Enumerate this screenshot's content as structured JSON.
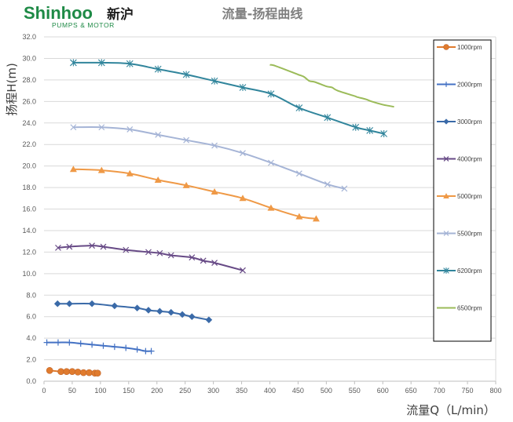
{
  "logo": {
    "main": "Shinhoo",
    "cn": "新沪",
    "sub": "PUMPS & MOTOR"
  },
  "chart_data": {
    "type": "line",
    "title": "流量-扬程曲线",
    "xlabel": "流量Q（L/min）",
    "ylabel": "扬程H(m)",
    "xlim": [
      0,
      800
    ],
    "ylim": [
      0,
      32
    ],
    "xticks": [
      "0",
      "50",
      "100",
      "150",
      "200",
      "250",
      "300",
      "350",
      "400",
      "450",
      "500",
      "550",
      "600",
      "650",
      "700",
      "750",
      "800"
    ],
    "yticks": [
      "0.0",
      "2.0",
      "4.0",
      "6.0",
      "8.0",
      "10.0",
      "12.0",
      "14.0",
      "16.0",
      "18.0",
      "20.0",
      "22.0",
      "24.0",
      "26.0",
      "28.0",
      "30.0",
      "32.0"
    ],
    "grid": "horizontal",
    "legend_position": "right",
    "series": [
      {
        "name": "1000rpm",
        "color": "#e07b2e",
        "marker": "circle",
        "x": [
          10,
          30,
          40,
          50,
          60,
          70,
          80,
          90,
          95
        ],
        "y": [
          1.0,
          0.9,
          0.9,
          0.9,
          0.85,
          0.8,
          0.8,
          0.75,
          0.75
        ]
      },
      {
        "name": "2000rpm",
        "color": "#4472c4",
        "marker": "plus",
        "x": [
          5,
          25,
          45,
          65,
          85,
          105,
          125,
          145,
          165,
          180,
          190
        ],
        "y": [
          3.6,
          3.6,
          3.6,
          3.5,
          3.4,
          3.3,
          3.2,
          3.1,
          2.95,
          2.8,
          2.8
        ]
      },
      {
        "name": "3000rpm",
        "color": "#3a6aa8",
        "marker": "diamond",
        "x": [
          24,
          45,
          85,
          125,
          165,
          185,
          205,
          225,
          245,
          262,
          292
        ],
        "y": [
          7.2,
          7.2,
          7.2,
          7.0,
          6.8,
          6.6,
          6.5,
          6.4,
          6.2,
          6.0,
          5.7
        ]
      },
      {
        "name": "4000rpm",
        "color": "#674a86",
        "marker": "x",
        "x": [
          25,
          45,
          85,
          105,
          145,
          185,
          205,
          225,
          262,
          282,
          302,
          352
        ],
        "y": [
          12.4,
          12.5,
          12.6,
          12.5,
          12.2,
          12.0,
          11.9,
          11.7,
          11.5,
          11.2,
          11.0,
          10.3
        ]
      },
      {
        "name": "5000rpm",
        "color": "#ef9946",
        "marker": "triangle",
        "x": [
          52,
          102,
          152,
          202,
          252,
          302,
          352,
          402,
          452,
          482
        ],
        "y": [
          19.7,
          19.6,
          19.3,
          18.7,
          18.2,
          17.6,
          17.0,
          16.1,
          15.3,
          15.1
        ]
      },
      {
        "name": "5500rpm",
        "color": "#a5b4d6",
        "marker": "x",
        "x": [
          52,
          102,
          152,
          202,
          252,
          302,
          352,
          402,
          452,
          502,
          532
        ],
        "y": [
          23.6,
          23.6,
          23.4,
          22.9,
          22.4,
          21.9,
          21.2,
          20.3,
          19.3,
          18.3,
          17.9
        ]
      },
      {
        "name": "6200rpm",
        "color": "#31859c",
        "marker": "star",
        "x": [
          52,
          102,
          152,
          202,
          252,
          302,
          352,
          402,
          452,
          502,
          552,
          577,
          602
        ],
        "y": [
          29.6,
          29.6,
          29.5,
          29.0,
          28.5,
          27.9,
          27.3,
          26.7,
          25.4,
          24.5,
          23.6,
          23.3,
          23.0
        ]
      },
      {
        "name": "6500rpm",
        "color": "#9bbb59",
        "marker": "line",
        "x": [
          400,
          410,
          450,
          460,
          470,
          480,
          500,
          510,
          520,
          550,
          555,
          570,
          580,
          600,
          610,
          620
        ],
        "y": [
          29.4,
          29.3,
          28.5,
          28.3,
          27.9,
          27.8,
          27.4,
          27.3,
          27.0,
          26.5,
          26.4,
          26.2,
          26.0,
          25.7,
          25.6,
          25.5
        ]
      }
    ]
  }
}
